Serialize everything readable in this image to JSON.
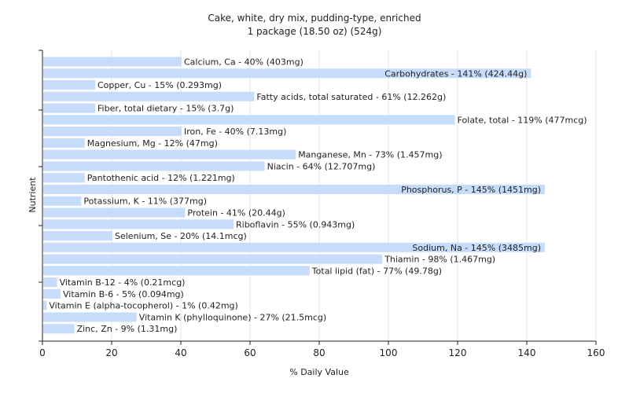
{
  "chart_data": {
    "type": "bar",
    "orientation": "horizontal",
    "title": "Cake, white, dry mix, pudding-type, enriched",
    "subtitle": "1 package (18.50 oz) (524g)",
    "xlabel": "% Daily Value",
    "ylabel": "Nutrient",
    "xlim": [
      0,
      160
    ],
    "xticks": [
      0,
      20,
      40,
      60,
      80,
      100,
      120,
      140,
      160
    ],
    "grid": true,
    "bar_color": "#c6dcfa",
    "categories": [
      "Calcium, Ca",
      "Carbohydrates",
      "Copper, Cu",
      "Fatty acids, total saturated",
      "Fiber, total dietary",
      "Folate, total",
      "Iron, Fe",
      "Magnesium, Mg",
      "Manganese, Mn",
      "Niacin",
      "Pantothenic acid",
      "Phosphorus, P",
      "Potassium, K",
      "Protein",
      "Riboflavin",
      "Selenium, Se",
      "Sodium, Na",
      "Thiamin",
      "Total lipid (fat)",
      "Vitamin B-12",
      "Vitamin B-6",
      "Vitamin E (alpha-tocopherol)",
      "Vitamin K (phylloquinone)",
      "Zinc, Zn"
    ],
    "values": [
      40,
      141,
      15,
      61,
      15,
      119,
      40,
      12,
      73,
      64,
      12,
      145,
      11,
      41,
      55,
      20,
      145,
      98,
      77,
      4,
      5,
      1,
      27,
      9
    ],
    "labels": [
      "Calcium, Ca - 40% (403mg)",
      "Carbohydrates - 141% (424.44g)",
      "Copper, Cu - 15% (0.293mg)",
      "Fatty acids, total saturated - 61% (12.262g)",
      "Fiber, total dietary - 15% (3.7g)",
      "Folate, total - 119% (477mcg)",
      "Iron, Fe - 40% (7.13mg)",
      "Magnesium, Mg - 12% (47mg)",
      "Manganese, Mn - 73% (1.457mg)",
      "Niacin - 64% (12.707mg)",
      "Pantothenic acid - 12% (1.221mg)",
      "Phosphorus, P - 145% (1451mg)",
      "Potassium, K - 11% (377mg)",
      "Protein - 41% (20.44g)",
      "Riboflavin - 55% (0.943mg)",
      "Selenium, Se - 20% (14.1mcg)",
      "Sodium, Na - 145% (3485mg)",
      "Thiamin - 98% (1.467mg)",
      "Total lipid (fat) - 77% (49.78g)",
      "Vitamin B-12 - 4% (0.21mcg)",
      "Vitamin B-6 - 5% (0.094mg)",
      "Vitamin E (alpha-tocopherol) - 1% (0.42mg)",
      "Vitamin K (phylloquinone) - 27% (21.5mcg)",
      "Zinc, Zn - 9% (1.31mg)"
    ]
  }
}
